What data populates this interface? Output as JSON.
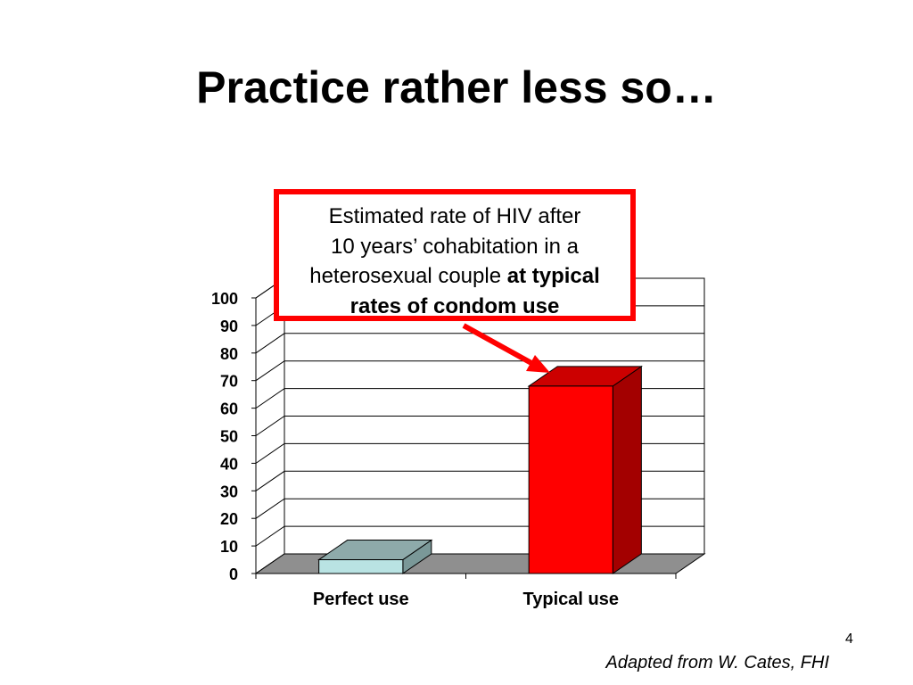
{
  "slide": {
    "title": "Practice rather less so…",
    "page_number": "4",
    "source_note": "Adapted from W. Cates, FHI"
  },
  "callout": {
    "line1": "Estimated rate of HIV after",
    "line2": "10 years’ cohabitation in a",
    "line3_regular": "heterosexual couple ",
    "line3_bold": "at typical",
    "line4_bold": "rates of condom use",
    "border_color": "#ff0000"
  },
  "chart_data": {
    "type": "bar",
    "style": "3d",
    "categories": [
      "Perfect use",
      "Typical use"
    ],
    "values": [
      5,
      68
    ],
    "ylim": [
      0,
      100
    ],
    "yticks": [
      0,
      10,
      20,
      30,
      40,
      50,
      60,
      70,
      80,
      90,
      100
    ],
    "grid": true,
    "legend": "none",
    "colors": {
      "Perfect use": {
        "front": "#b9e3e3",
        "side": "#7a9898",
        "top": "#8eaaaa"
      },
      "Typical use": {
        "front": "#ff0000",
        "side": "#a30000",
        "top": "#cc0000"
      },
      "floor": "#8f8f8f"
    }
  }
}
